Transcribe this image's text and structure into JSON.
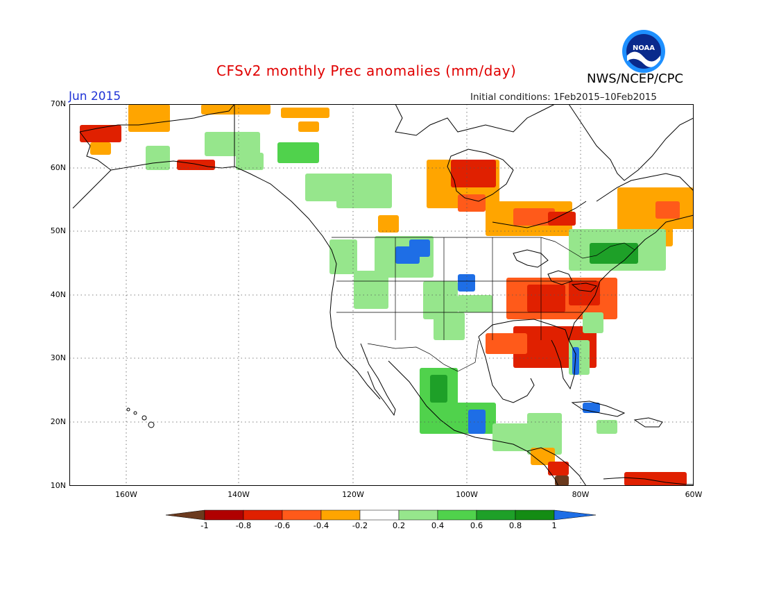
{
  "title": "CFSv2 monthly Prec anomalies (mm/day)",
  "month": "Jun 2015",
  "initial_conditions": "Initial conditions: 1Feb2015–10Feb2015",
  "agency": "NWS/NCEP/CPC",
  "logo_text": "NOAA",
  "lat_labels": [
    "70N",
    "60N",
    "50N",
    "40N",
    "30N",
    "20N",
    "10N"
  ],
  "lon_labels": [
    "160W",
    "140W",
    "120W",
    "100W",
    "80W",
    "60W"
  ],
  "colorbar": {
    "labels": [
      "-1",
      "-0.8",
      "-0.6",
      "-0.4",
      "-0.2",
      "0.2",
      "0.4",
      "0.6",
      "0.8",
      "1"
    ],
    "colors": [
      "#6b3a1e",
      "#b00000",
      "#e02000",
      "#ff5a1a",
      "#ffa500",
      "#ffffff",
      "#96e68c",
      "#50d24c",
      "#1ea028",
      "#148c14",
      "#1e6ee6"
    ]
  },
  "colors": {
    "ocean": "#ffffff",
    "coast": "#000000",
    "grid": "#555555"
  }
}
